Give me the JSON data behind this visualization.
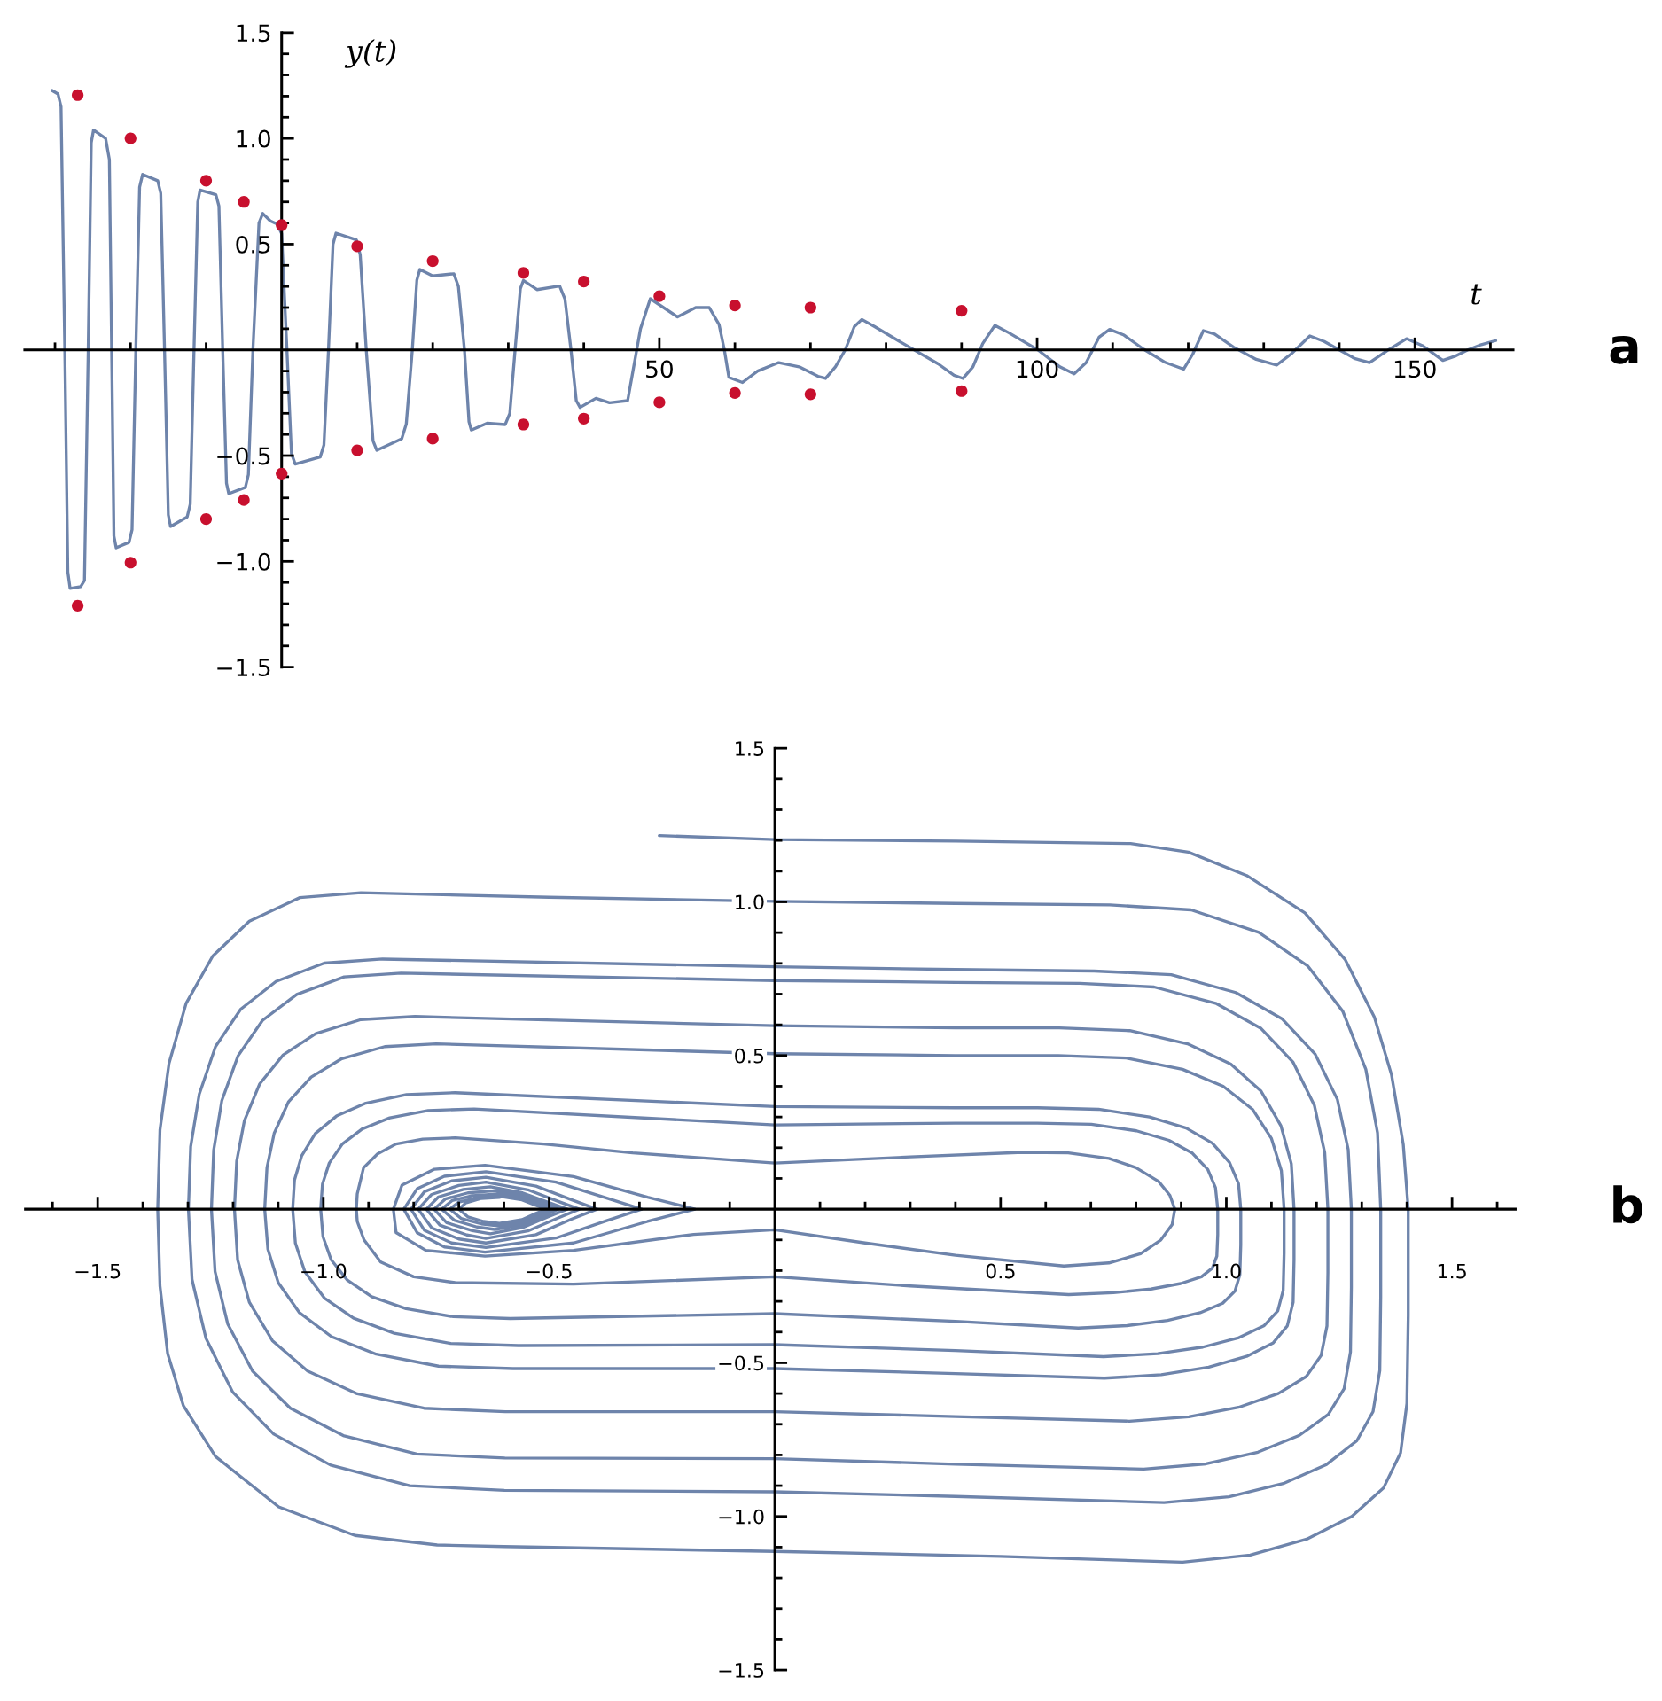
{
  "chart_data": [
    {
      "type": "line",
      "xlabel": "t",
      "ylabel": "y(t)",
      "annotations": [
        "a"
      ],
      "xlim": [
        -34,
        163
      ],
      "ylim": [
        -1.5,
        1.5
      ],
      "xticks": [
        {
          "value": -30,
          "label": null
        },
        {
          "value": -20,
          "label": null
        },
        {
          "value": -10,
          "label": null
        },
        {
          "value": 10,
          "label": null
        },
        {
          "value": 20,
          "label": null
        },
        {
          "value": 30,
          "label": null
        },
        {
          "value": 40,
          "label": null
        },
        50,
        {
          "value": 60,
          "label": null
        },
        {
          "value": 70,
          "label": null
        },
        {
          "value": 80,
          "label": null
        },
        {
          "value": 90,
          "label": null
        },
        100,
        {
          "value": 110,
          "label": null
        },
        {
          "value": 120,
          "label": null
        },
        {
          "value": 130,
          "label": null
        },
        {
          "value": 140,
          "label": null
        },
        150,
        {
          "value": 160,
          "label": null
        }
      ],
      "yticks": [
        {
          "value": -1.5,
          "label": "−1.5"
        },
        {
          "value": -1.4,
          "label": null
        },
        {
          "value": -1.3,
          "label": null
        },
        {
          "value": -1.2,
          "label": null
        },
        {
          "value": -1.1,
          "label": null
        },
        {
          "value": -1,
          "label": "−1.0"
        },
        {
          "value": -0.9,
          "label": null
        },
        {
          "value": -0.8,
          "label": null
        },
        {
          "value": -0.7,
          "label": null
        },
        {
          "value": -0.6,
          "label": null
        },
        {
          "value": -0.5,
          "label": "−0.5"
        },
        {
          "value": -0.4,
          "label": null
        },
        {
          "value": -0.3,
          "label": null
        },
        {
          "value": -0.2,
          "label": null
        },
        {
          "value": -0.1,
          "label": null
        },
        {
          "value": 0.1,
          "label": null
        },
        {
          "value": 0.2,
          "label": null
        },
        {
          "value": 0.3,
          "label": null
        },
        {
          "value": 0.4,
          "label": null
        },
        {
          "value": 0.5,
          "label": "0.5"
        },
        {
          "value": 0.6,
          "label": null
        },
        {
          "value": 0.7,
          "label": null
        },
        {
          "value": 0.8,
          "label": null
        },
        {
          "value": 0.9,
          "label": null
        },
        {
          "value": 1,
          "label": "1.0"
        },
        {
          "value": 1.1,
          "label": null
        },
        {
          "value": 1.2,
          "label": null
        },
        {
          "value": 1.3,
          "label": null
        },
        {
          "value": 1.4,
          "label": null
        },
        {
          "value": 1.5,
          "label": "1.5"
        }
      ],
      "series": [
        {
          "type": "line",
          "color": "#6e84ab",
          "x": [
            -30.4,
            -29.6,
            -29.2,
            -28.7,
            -28.3,
            -28.0,
            -26.6,
            -26.1,
            -25.6,
            -25.2,
            -24.9,
            -23.3,
            -22.8,
            -22.5,
            -22.2,
            -21.9,
            -20.2,
            -19.8,
            -19.3,
            -18.8,
            -18.4,
            -16.4,
            -16.0,
            -15.5,
            -15.0,
            -14.7,
            -12.5,
            -12.1,
            -11.6,
            -11.1,
            -10.8,
            -8.7,
            -8.3,
            -7.8,
            -7.3,
            -7.0,
            -4.8,
            -4.4,
            -3.8,
            -3.0,
            -2.5,
            -1.5,
            -0.6,
            0.0,
            0.7,
            1.3,
            1.8,
            5.1,
            5.6,
            6.2,
            6.8,
            7.2,
            9.9,
            10.4,
            11.2,
            12.1,
            12.6,
            15.9,
            16.5,
            17.3,
            17.9,
            18.3,
            20.0,
            22.8,
            23.4,
            24.2,
            24.8,
            25.1,
            27.2,
            29.6,
            30.2,
            30.9,
            31.6,
            32.0,
            33.8,
            36.8,
            37.5,
            38.3,
            39.0,
            39.5,
            41.6,
            43.4,
            45.8,
            46.5,
            47.5,
            48.8,
            52.4,
            54.8,
            56.6,
            57.9,
            58.6,
            59.2,
            61.0,
            63.0,
            65.8,
            68.5,
            71.0,
            72.0,
            73.3,
            74.6,
            75.8,
            76.8,
            78.5,
            81.6,
            86.9,
            89.0,
            90.2,
            91.5,
            92.8,
            94.4,
            96.3,
            100.1,
            103.0,
            104.9,
            106.5,
            108.2,
            109.6,
            111.5,
            114.1,
            117.0,
            119.4,
            120.6,
            122.0,
            123.5,
            126.0,
            129.0,
            131.7,
            133.6,
            136.1,
            138.0,
            140.0,
            142.0,
            144.0,
            146.5,
            148.9,
            151.0,
            153.7,
            155.3,
            157.0,
            158.8,
            160.7
          ],
          "values": [
            1.227,
            1.21,
            1.15,
            0,
            -1.05,
            -1.128,
            -1.12,
            -1.09,
            0,
            0.98,
            1.04,
            1.0,
            0.9,
            0,
            -0.88,
            -0.936,
            -0.91,
            -0.85,
            0,
            0.77,
            0.83,
            0.8,
            0.74,
            0,
            -0.78,
            -0.835,
            -0.79,
            -0.73,
            0,
            0.7,
            0.756,
            0.734,
            0.68,
            0,
            -0.63,
            -0.68,
            -0.65,
            -0.59,
            0,
            0.6,
            0.645,
            0.61,
            0.595,
            0.55,
            0,
            -0.49,
            -0.54,
            -0.507,
            -0.45,
            0,
            0.5,
            0.552,
            0.52,
            0.45,
            0,
            -0.43,
            -0.475,
            -0.42,
            -0.35,
            0,
            0.33,
            0.38,
            0.35,
            0.36,
            0.3,
            0,
            -0.34,
            -0.379,
            -0.347,
            -0.353,
            -0.3,
            0,
            0.29,
            0.328,
            0.285,
            0.302,
            0.24,
            0,
            -0.24,
            -0.272,
            -0.229,
            -0.25,
            -0.24,
            -0.1,
            0.1,
            0.242,
            0.156,
            0.2,
            0.2,
            0.12,
            0,
            -0.13,
            -0.154,
            -0.1,
            -0.06,
            -0.08,
            -0.125,
            -0.135,
            -0.08,
            0,
            0.11,
            0.144,
            0.11,
            0.044,
            -0.066,
            -0.12,
            -0.135,
            -0.08,
            0.03,
            0.116,
            0.08,
            0,
            -0.08,
            -0.113,
            -0.06,
            0.06,
            0.097,
            0.07,
            0.003,
            -0.06,
            -0.091,
            -0.02,
            0.091,
            0.075,
            0.013,
            -0.045,
            -0.072,
            -0.02,
            0.066,
            0.04,
            0,
            -0.04,
            -0.06,
            0,
            0.053,
            0.02,
            -0.05,
            -0.03,
            0,
            0.025,
            0.044
          ]
        },
        {
          "type": "scatter",
          "color": "#c8102e",
          "marker": "circle",
          "x": [
            -27,
            -27,
            -20,
            -20,
            -10,
            -10,
            -5,
            -5,
            0,
            0,
            10,
            10,
            20,
            20,
            32,
            32,
            40,
            40,
            50,
            50,
            60,
            60,
            70,
            70,
            90,
            90
          ],
          "values": [
            1.205,
            -1.21,
            1.0,
            -1.006,
            0.8,
            -0.8,
            0.7,
            -0.71,
            0.59,
            -0.585,
            0.49,
            -0.475,
            0.42,
            -0.42,
            0.364,
            -0.353,
            0.323,
            -0.325,
            0.254,
            -0.248,
            0.21,
            -0.204,
            0.2,
            -0.21,
            0.185,
            -0.195
          ]
        }
      ]
    },
    {
      "type": "line",
      "annotations": [
        "b"
      ],
      "xlim": [
        -1.66,
        1.64
      ],
      "ylim": [
        -1.5,
        1.5
      ],
      "xticks": [
        {
          "value": -1.6,
          "label": null
        },
        {
          "value": -1.5,
          "label": "−1.5"
        },
        {
          "value": -1.4,
          "label": null
        },
        {
          "value": -1.3,
          "label": null
        },
        {
          "value": -1.2,
          "label": null
        },
        {
          "value": -1.1,
          "label": null
        },
        {
          "value": -1,
          "label": "−1.0"
        },
        {
          "value": -0.9,
          "label": null
        },
        {
          "value": -0.8,
          "label": null
        },
        {
          "value": -0.7,
          "label": null
        },
        {
          "value": -0.6,
          "label": null
        },
        {
          "value": -0.5,
          "label": "−0.5"
        },
        {
          "value": -0.4,
          "label": null
        },
        {
          "value": -0.3,
          "label": null
        },
        {
          "value": -0.2,
          "label": null
        },
        {
          "value": -0.1,
          "label": null
        },
        {
          "value": 0.1,
          "label": null
        },
        {
          "value": 0.2,
          "label": null
        },
        {
          "value": 0.3,
          "label": null
        },
        {
          "value": 0.4,
          "label": null
        },
        {
          "value": 0.5,
          "label": "0.5"
        },
        {
          "value": 0.6,
          "label": null
        },
        {
          "value": 0.7,
          "label": null
        },
        {
          "value": 0.8,
          "label": null
        },
        {
          "value": 0.9,
          "label": null
        },
        {
          "value": 1,
          "label": "1.0"
        },
        {
          "value": 1.1,
          "label": null
        },
        {
          "value": 1.2,
          "label": null
        },
        {
          "value": 1.3,
          "label": null
        },
        {
          "value": 1.4,
          "label": null
        },
        {
          "value": 1.5,
          "label": "1.5"
        },
        {
          "value": 1.6,
          "label": null
        }
      ],
      "yticks": [
        {
          "value": -1.5,
          "label": "−1.5"
        },
        {
          "value": -1.4,
          "label": null
        },
        {
          "value": -1.3,
          "label": null
        },
        {
          "value": -1.2,
          "label": null
        },
        {
          "value": -1.1,
          "label": null
        },
        {
          "value": -1,
          "label": "−1.0"
        },
        {
          "value": -0.9,
          "label": null
        },
        {
          "value": -0.8,
          "label": null
        },
        {
          "value": -0.7,
          "label": null
        },
        {
          "value": -0.6,
          "label": null
        },
        {
          "value": -0.5,
          "label": "−0.5"
        },
        {
          "value": -0.4,
          "label": null
        },
        {
          "value": -0.3,
          "label": null
        },
        {
          "value": -0.2,
          "label": null
        },
        {
          "value": -0.1,
          "label": null
        },
        {
          "value": 0.1,
          "label": null
        },
        {
          "value": 0.2,
          "label": null
        },
        {
          "value": 0.3,
          "label": null
        },
        {
          "value": 0.4,
          "label": null
        },
        {
          "value": 0.5,
          "label": "0.5"
        },
        {
          "value": 0.6,
          "label": null
        },
        {
          "value": 0.7,
          "label": null
        },
        {
          "value": 0.8,
          "label": null
        },
        {
          "value": 0.9,
          "label": null
        },
        {
          "value": 1,
          "label": "1.0"
        },
        {
          "value": 1.1,
          "label": null
        },
        {
          "value": 1.2,
          "label": null
        },
        {
          "value": 1.3,
          "label": null
        },
        {
          "value": 1.4,
          "label": null
        },
        {
          "value": 1.5,
          "label": "1.5"
        }
      ],
      "series": [
        {
          "color": "#6e84ab",
          "x": [
            -0.256,
            0,
            0.4,
            0.788,
            0.916,
            1.045,
            1.174,
            1.263,
            1.328,
            1.366,
            1.392,
            1.403,
            1.403,
            1.4,
            1.386,
            1.348,
            1.278,
            1.178,
            1.053,
            0.903,
            0.5,
            0,
            -0.6,
            -0.748,
            -0.93,
            -1.099,
            -1.239,
            -1.31,
            -1.345,
            -1.362,
            -1.367,
            -1.362,
            -1.342,
            -1.304,
            -1.245,
            -1.164,
            -1.052,
            -0.917,
            -0.5,
            0,
            0.4,
            0.742,
            0.922,
            1.072,
            1.18,
            1.258,
            1.309,
            1.335,
            1.342,
            1.342,
            1.34,
            1.325,
            1.289,
            1.222,
            1.126,
            1.006,
            0.862,
            0.4,
            0,
            -0.599,
            -0.809,
            -0.984,
            -1.11,
            -1.201,
            -1.26,
            -1.291,
            -1.299,
            -1.294,
            -1.275,
            -1.239,
            -1.183,
            -1.105,
            -0.998,
            -0.869,
            0,
            0.4,
            0.707,
            0.878,
            1.021,
            1.123,
            1.197,
            1.246,
            1.27,
            1.277,
            1.277,
            1.275,
            1.261,
            1.226,
            1.162,
            1.07,
            0.955,
            0.817,
            0.4,
            0,
            -0.598,
            -0.793,
            -0.956,
            -1.073,
            -1.157,
            -1.212,
            -1.24,
            -1.248,
            -1.243,
            -1.225,
            -1.189,
            -1.135,
            -1.059,
            -0.954,
            -0.828,
            0,
            0.4,
            0.675,
            0.84,
            0.978,
            1.077,
            1.148,
            1.195,
            1.218,
            1.225,
            1.225,
            1.223,
            1.21,
            1.177,
            1.115,
            1.027,
            0.917,
            0.785,
            0.4,
            0,
            -0.597,
            -0.777,
            -0.927,
            -1.035,
            -1.113,
            -1.164,
            -1.19,
            -1.197,
            -1.192,
            -1.175,
            -1.141,
            -1.089,
            -1.017,
            -0.917,
            -0.797,
            0,
            0.4,
            0.63,
            0.786,
            0.916,
            1.01,
            1.077,
            1.121,
            1.144,
            1.15,
            1.15,
            1.148,
            1.135,
            1.104,
            1.045,
            0.961,
            0.856,
            0.73,
            0.4,
            0,
            -0.58,
            -0.745,
            -0.883,
            -0.982,
            -1.053,
            -1.1,
            -1.123,
            -1.13,
            -1.125,
            -1.109,
            -1.077,
            -1.027,
            -0.959,
            -0.864,
            -0.75,
            0,
            0.4,
            0.628,
            0.778,
            0.903,
            0.993,
            1.058,
            1.1,
            1.122,
            1.128,
            1.128,
            1.126,
            1.114,
            1.084,
            1.028,
            0.948,
            0.848,
            0.728,
            0.4,
            0,
            -0.568,
            -0.718,
            -0.843,
            -0.933,
            -0.998,
            -1.041,
            -1.062,
            -1.068,
            -1.064,
            -1.048,
            -1.018,
            -0.971,
            -0.906,
            -0.816,
            -0.708,
            0,
            0.4,
            0.582,
            0.717,
            0.83,
            0.911,
            0.969,
            1.007,
            1.027,
            1.032,
            1.032,
            1.03,
            1.019,
            0.992,
            0.942,
            0.87,
            0.78,
            0.672,
            0.4,
            0,
            -0.586,
            -0.712,
            -0.817,
            -0.893,
            -0.947,
            -0.983,
            -1.001,
            -1.006,
            -1.002,
            -0.987,
            -0.958,
            -0.914,
            -0.853,
            -0.768,
            -0.666,
            0,
            0.4,
            0.581,
            0.701,
            0.801,
            0.873,
            0.925,
            0.959,
            0.976,
            0.981,
            0.981,
            0.979,
            0.969,
            0.945,
            0.899,
            0.833,
            0.75,
            0.651,
            0.3,
            0,
            -0.446,
            -0.708,
            -0.8,
            -0.873,
            -0.91,
            -0.925,
            -0.927,
            -0.925,
            -0.911,
            -0.88,
            -0.839,
            -0.78,
            -0.708,
            -0.512,
            -0.315,
            0,
            0.3,
            0.55,
            0.65,
            0.74,
            0.8,
            0.85,
            0.875,
            0.886,
            0.88,
            0.855,
            0.81,
            0.74,
            0.64,
            0.4,
            0.2,
            0,
            -0.18,
            -0.446,
            -0.642,
            -0.773,
            -0.839,
            -0.845,
            -0.826,
            -0.754,
            -0.642,
            -0.446,
            -0.282,
            -0.177,
            -0.282,
            -0.446,
            -0.642,
            -0.732,
            -0.792,
            -0.822,
            -0.792,
            -0.732,
            -0.64,
            -0.485,
            -0.374,
            -0.295,
            -0.374,
            -0.485,
            -0.64,
            -0.716,
            -0.776,
            -0.806,
            -0.776,
            -0.716,
            -0.64,
            -0.529,
            -0.451,
            -0.394,
            -0.451,
            -0.529,
            -0.64,
            -0.7,
            -0.76,
            -0.79,
            -0.76,
            -0.7,
            -0.64,
            -0.547,
            -0.481,
            -0.433,
            -0.481,
            -0.547,
            -0.64,
            -0.682,
            -0.742,
            -0.772,
            -0.745,
            -0.69,
            -0.63,
            -0.559,
            -0.501,
            -0.46,
            -0.501,
            -0.559,
            -0.63,
            -0.67,
            -0.727,
            -0.755,
            -0.73,
            -0.68,
            -0.62,
            -0.555,
            -0.51,
            -0.48,
            -0.51,
            -0.555,
            -0.62,
            -0.66,
            -0.71,
            -0.738,
            -0.715,
            -0.67,
            -0.61,
            -0.555,
            -0.52,
            -0.495,
            -0.52,
            -0.555,
            -0.61,
            -0.65,
            -0.695,
            -0.72,
            -0.7,
            -0.66,
            -0.61,
            -0.56,
            -0.53,
            -0.505,
            -0.53,
            -0.56,
            -0.61,
            -0.645,
            -0.68,
            -0.7,
            -0.685,
            -0.65,
            -0.61
          ],
          "values": [
            1.216,
            1.203,
            1.198,
            1.19,
            1.162,
            1.086,
            0.964,
            0.813,
            0.625,
            0.437,
            0.21,
            0,
            -0.345,
            -0.632,
            -0.793,
            -0.908,
            -1.0,
            -1.074,
            -1.126,
            -1.149,
            -1.13,
            -1.114,
            -1.098,
            -1.093,
            -1.062,
            -0.969,
            -0.805,
            -0.64,
            -0.47,
            -0.25,
            0,
            0.258,
            0.474,
            0.67,
            0.824,
            0.937,
            1.014,
            1.03,
            1.015,
            1.002,
            0.995,
            0.99,
            0.974,
            0.901,
            0.792,
            0.644,
            0.455,
            0.248,
            0,
            -0.287,
            -0.525,
            -0.659,
            -0.754,
            -0.831,
            -0.893,
            -0.936,
            -0.955,
            -0.935,
            -0.92,
            -0.915,
            -0.9,
            -0.833,
            -0.732,
            -0.595,
            -0.421,
            -0.229,
            0,
            0.204,
            0.374,
            0.529,
            0.651,
            0.741,
            0.801,
            0.814,
            0.789,
            0.78,
            0.775,
            0.763,
            0.705,
            0.62,
            0.504,
            0.357,
            0.194,
            0,
            -0.254,
            -0.465,
            -0.584,
            -0.668,
            -0.736,
            -0.791,
            -0.829,
            -0.846,
            -0.83,
            -0.812,
            -0.81,
            -0.797,
            -0.737,
            -0.648,
            -0.527,
            -0.373,
            -0.203,
            0,
            0.192,
            0.353,
            0.499,
            0.614,
            0.699,
            0.756,
            0.768,
            0.744,
            0.738,
            0.735,
            0.723,
            0.669,
            0.588,
            0.478,
            0.338,
            0.184,
            0,
            -0.207,
            -0.38,
            -0.476,
            -0.545,
            -0.6,
            -0.645,
            -0.676,
            -0.69,
            -0.675,
            -0.659,
            -0.659,
            -0.648,
            -0.6,
            -0.527,
            -0.428,
            -0.303,
            -0.165,
            0,
            0.157,
            0.288,
            0.408,
            0.502,
            0.571,
            0.617,
            0.627,
            0.597,
            0.59,
            0.59,
            0.581,
            0.537,
            0.472,
            0.384,
            0.271,
            0.148,
            0,
            -0.165,
            -0.303,
            -0.38,
            -0.435,
            -0.479,
            -0.514,
            -0.539,
            -0.55,
            -0.535,
            -0.519,
            -0.519,
            -0.511,
            -0.472,
            -0.415,
            -0.337,
            -0.239,
            -0.13,
            0,
            0.135,
            0.247,
            0.35,
            0.43,
            0.49,
            0.529,
            0.538,
            0.506,
            0.5,
            0.5,
            0.492,
            0.455,
            0.4,
            0.325,
            0.23,
            0.125,
            0,
            -0.144,
            -0.264,
            -0.331,
            -0.379,
            -0.418,
            -0.449,
            -0.47,
            -0.48,
            -0.46,
            -0.441,
            -0.444,
            -0.437,
            -0.404,
            -0.355,
            -0.289,
            -0.204,
            -0.111,
            0,
            0.095,
            0.174,
            0.246,
            0.303,
            0.345,
            0.373,
            0.379,
            0.334,
            0.33,
            0.33,
            0.325,
            0.3,
            0.264,
            0.215,
            0.152,
            0.083,
            0,
            -0.116,
            -0.213,
            -0.267,
            -0.306,
            -0.337,
            -0.362,
            -0.379,
            -0.387,
            -0.365,
            -0.34,
            -0.356,
            -0.35,
            -0.324,
            -0.285,
            -0.231,
            -0.164,
            -0.089,
            0,
            0.082,
            0.15,
            0.212,
            0.261,
            0.297,
            0.321,
            0.326,
            0.274,
            0.28,
            0.28,
            0.276,
            0.255,
            0.224,
            0.182,
            0.129,
            0.07,
            0,
            -0.083,
            -0.153,
            -0.192,
            -0.22,
            -0.242,
            -0.26,
            -0.272,
            -0.278,
            -0.25,
            -0.22,
            -0.244,
            -0.239,
            -0.22,
            -0.172,
            -0.1,
            -0.04,
            0,
            0.05,
            0.135,
            0.18,
            0.212,
            0.228,
            0.232,
            0.212,
            0.183,
            0.15,
            0.17,
            0.185,
            0.183,
            0.165,
            0.135,
            0.09,
            0.045,
            0,
            -0.05,
            -0.1,
            -0.145,
            -0.175,
            -0.185,
            -0.15,
            -0.11,
            -0.067,
            -0.082,
            -0.134,
            -0.153,
            -0.134,
            -0.076,
            0,
            0.078,
            0.13,
            0.143,
            0.106,
            0.039,
            0,
            -0.04,
            -0.11,
            -0.14,
            -0.123,
            -0.077,
            0,
            0.067,
            0.107,
            0.122,
            0.088,
            0.037,
            0,
            -0.038,
            -0.094,
            -0.125,
            -0.11,
            -0.069,
            0,
            0.057,
            0.092,
            0.104,
            0.075,
            0.031,
            0,
            -0.033,
            -0.083,
            -0.11,
            -0.097,
            -0.061,
            0,
            0.048,
            0.077,
            0.088,
            0.063,
            0.026,
            0,
            -0.029,
            -0.071,
            -0.095,
            -0.084,
            -0.052,
            0,
            0.04,
            0.064,
            0.073,
            0.053,
            0.022,
            0,
            -0.024,
            -0.06,
            -0.08,
            -0.07,
            -0.044,
            0,
            0.033,
            0.053,
            0.06,
            0.043,
            0.018,
            0,
            -0.02,
            -0.05,
            -0.066,
            -0.058,
            -0.036,
            0,
            0.028,
            0.044,
            0.05,
            0.036,
            0.015,
            0,
            -0.017,
            -0.041,
            -0.055,
            -0.048,
            -0.03,
            0,
            0.023,
            0.037,
            0.042,
            0.03,
            0.013,
            0,
            -0.014,
            -0.034,
            -0.046,
            -0.04,
            -0.025,
            0,
            0.02,
            0.035,
            0.038
          ]
        }
      ]
    }
  ]
}
